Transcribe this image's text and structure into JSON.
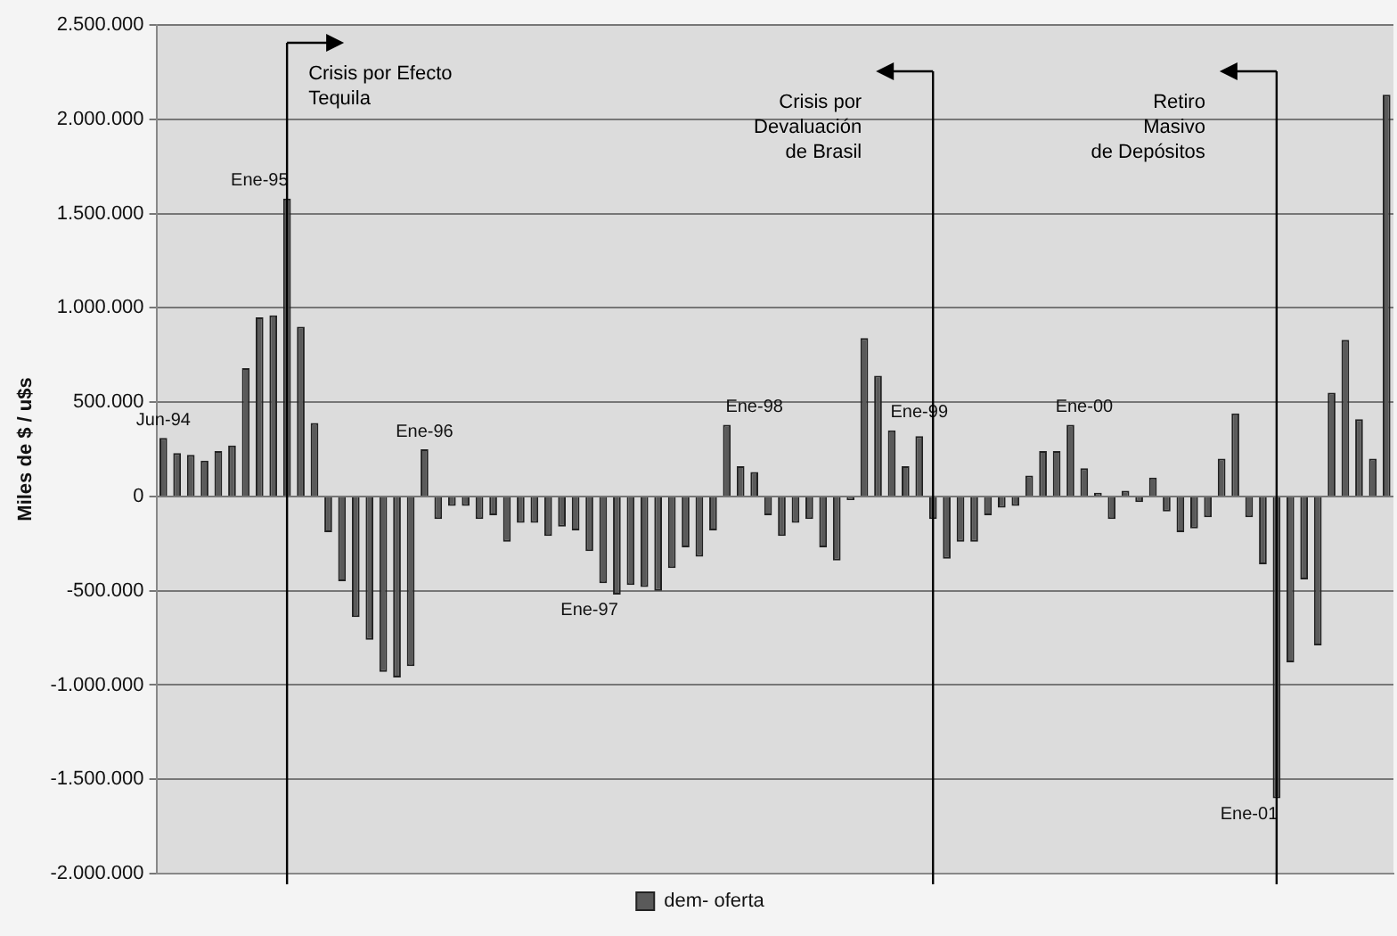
{
  "chart_data": {
    "type": "bar",
    "ylabel": "Miles de $ / u$s",
    "categories": [
      "Jun-94",
      null,
      null,
      null,
      null,
      null,
      null,
      "Ene-95",
      null,
      null,
      null,
      null,
      null,
      null,
      null,
      null,
      null,
      null,
      null,
      "Ene-96",
      null,
      null,
      null,
      null,
      null,
      null,
      null,
      null,
      null,
      null,
      null,
      "Ene-97",
      null,
      null,
      null,
      null,
      null,
      null,
      null,
      null,
      null,
      null,
      null,
      "Ene-98",
      null,
      null,
      null,
      null,
      null,
      null,
      null,
      null,
      null,
      null,
      null,
      "Ene-99",
      null,
      null,
      null,
      null,
      null,
      null,
      null,
      null,
      null,
      null,
      null,
      "Ene-00",
      null,
      null,
      null,
      null,
      null,
      null,
      null,
      null,
      null,
      null,
      null,
      "Ene-01",
      null,
      null,
      null,
      null,
      null,
      null,
      null,
      null,
      null,
      null
    ],
    "series": [
      {
        "name": "dem- oferta",
        "color": "#5a5a5a",
        "values": [
          310000,
          230000,
          220000,
          190000,
          240000,
          270000,
          680000,
          950000,
          960000,
          1580000,
          900000,
          390000,
          -190000,
          -450000,
          -640000,
          -760000,
          -930000,
          -960000,
          -900000,
          250000,
          -120000,
          -50000,
          -50000,
          -120000,
          -100000,
          -240000,
          -140000,
          -140000,
          -210000,
          -160000,
          -180000,
          -290000,
          -460000,
          -520000,
          -470000,
          -480000,
          -500000,
          -380000,
          -270000,
          -320000,
          -180000,
          380000,
          160000,
          130000,
          -100000,
          -210000,
          -140000,
          -120000,
          -270000,
          -340000,
          -20000,
          840000,
          640000,
          350000,
          160000,
          320000,
          -120000,
          -330000,
          -240000,
          -240000,
          -100000,
          -60000,
          -50000,
          110000,
          240000,
          240000,
          380000,
          150000,
          20000,
          -120000,
          30000,
          -30000,
          100000,
          -80000,
          -190000,
          -170000,
          -110000,
          200000,
          440000,
          -110000,
          -360000,
          -1600000,
          -880000,
          -440000,
          -790000,
          550000,
          830000,
          410000,
          200000,
          2130000
        ]
      }
    ],
    "ylim": [
      -2000000,
      2500000
    ],
    "yticks": [
      {
        "value": -2000000,
        "label": "-2.000.000"
      },
      {
        "value": -1500000,
        "label": "-1.500.000"
      },
      {
        "value": -1000000,
        "label": "-1.000.000"
      },
      {
        "value": -500000,
        "label": "-500.000"
      },
      0,
      {
        "value": 500000,
        "label": "500.000"
      },
      {
        "value": 1000000,
        "label": "1.000.000"
      },
      {
        "value": 1500000,
        "label": "1.500.000"
      },
      {
        "value": 2000000,
        "label": "2.000.000"
      },
      {
        "value": 2500000,
        "label": "2.500.000"
      }
    ],
    "annotations": [
      "Crisis por Efecto\nTequila",
      "Crisis por\nDevaluación\nde Brasil",
      "Retiro\nMasivo\nde Depósitos"
    ],
    "grid": "y",
    "legend": "bottom"
  }
}
